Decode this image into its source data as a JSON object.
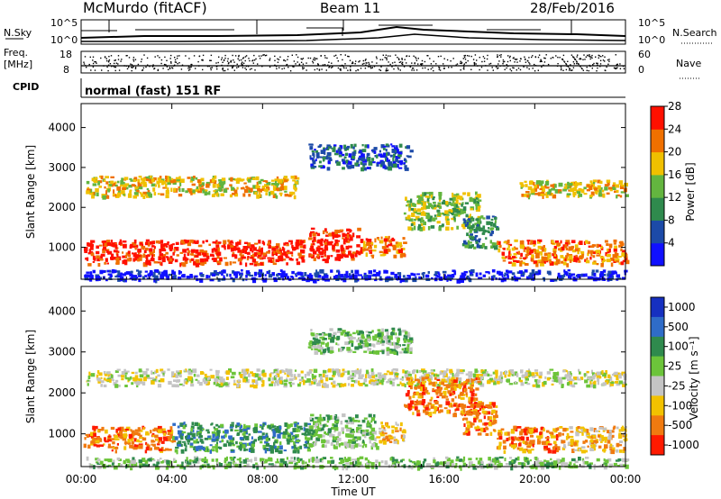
{
  "header": {
    "station": "McMurdo (fitACF)",
    "beam": "Beam 11",
    "date": "28/Feb/2016"
  },
  "summary_panels": {
    "nsky": {
      "label": "N.Sky",
      "ticks": [
        "10^5",
        "10^0"
      ]
    },
    "nsearch": {
      "label": "N.Search",
      "ticks": [
        "10^5",
        "10^0"
      ]
    },
    "freq": {
      "label": "Freq.",
      "unit": "[MHz]",
      "ticks": [
        "18",
        "8"
      ]
    },
    "nave": {
      "label": "Nave",
      "ticks": [
        "60",
        "0"
      ]
    },
    "cpid": {
      "label": "CPID",
      "text": "normal (fast) 151 RF"
    }
  },
  "chart_data": [
    {
      "type": "heatmap",
      "name": "power",
      "ylabel": "Slant Range [km]",
      "yticks": [
        "1000",
        "2000",
        "3000",
        "4000"
      ],
      "ylim": [
        200,
        4600
      ],
      "xlim": [
        0,
        24
      ],
      "colorbar": {
        "label": "Power [dB]",
        "ticks": [
          "4",
          "8",
          "12",
          "16",
          "20",
          "24",
          "28"
        ],
        "colors": [
          "#1010ff",
          "#1c4aa8",
          "#2f8a4d",
          "#63b53f",
          "#f0c000",
          "#f07000",
          "#ff1000"
        ]
      },
      "bands": [
        {
          "x": [
            0.1,
            9.8
          ],
          "r": [
            600,
            1200
          ],
          "level": 6
        },
        {
          "x": [
            10.0,
            12.2
          ],
          "r": [
            700,
            1500
          ],
          "level": 6
        },
        {
          "x": [
            12.2,
            14.2
          ],
          "r": [
            800,
            1300
          ],
          "level": 5
        },
        {
          "x": [
            18.3,
            24.0
          ],
          "r": [
            600,
            1200
          ],
          "level": 5
        },
        {
          "x": [
            0.2,
            9.5
          ],
          "r": [
            2300,
            2800
          ],
          "level": 4
        },
        {
          "x": [
            19.3,
            24.0
          ],
          "r": [
            2300,
            2700
          ],
          "level": 4
        },
        {
          "x": [
            14.2,
            17.5
          ],
          "r": [
            1500,
            2400
          ],
          "level": 3
        },
        {
          "x": [
            16.8,
            18.3
          ],
          "r": [
            1000,
            1800
          ],
          "level": 2
        },
        {
          "x": [
            10.0,
            14.5
          ],
          "r": [
            3000,
            3600
          ],
          "level": 1
        },
        {
          "x": [
            0.1,
            24.0
          ],
          "r": [
            200,
            450
          ],
          "level": 0
        }
      ]
    },
    {
      "type": "heatmap",
      "name": "velocity",
      "xlabel": "Time UT",
      "ylabel": "Slant Range [km]",
      "xticks": [
        "00:00",
        "04:00",
        "08:00",
        "12:00",
        "16:00",
        "20:00",
        "00:00"
      ],
      "yticks": [
        "1000",
        "2000",
        "3000",
        "4000"
      ],
      "ylim": [
        200,
        4600
      ],
      "xlim": [
        0,
        24
      ],
      "colorbar": {
        "label": "Velocity [m s⁻¹]",
        "ticks": [
          "1000",
          "500",
          "100",
          "25",
          "-25",
          "-100",
          "-500",
          "-1000"
        ],
        "colors": [
          "#1630c0",
          "#2f6cc8",
          "#2f8a4d",
          "#6cc43a",
          "#c4c4c4",
          "#f2c200",
          "#f07a10",
          "#ff1a00"
        ]
      },
      "bands": [
        {
          "x": [
            0.1,
            4.0
          ],
          "r": [
            600,
            1200
          ],
          "level": 6
        },
        {
          "x": [
            4.0,
            10.0
          ],
          "r": [
            600,
            1300
          ],
          "level": 2
        },
        {
          "x": [
            10.0,
            13.0
          ],
          "r": [
            700,
            1500
          ],
          "level": 3
        },
        {
          "x": [
            13.0,
            14.2
          ],
          "r": [
            800,
            1300
          ],
          "level": 5
        },
        {
          "x": [
            18.3,
            21.0
          ],
          "r": [
            600,
            1200
          ],
          "level": 6
        },
        {
          "x": [
            21.0,
            24.0
          ],
          "r": [
            600,
            1200
          ],
          "level": 5
        },
        {
          "x": [
            0.2,
            24.0
          ],
          "r": [
            2200,
            2600
          ],
          "level": 4
        },
        {
          "x": [
            14.2,
            17.5
          ],
          "r": [
            1500,
            2400
          ],
          "level": 6
        },
        {
          "x": [
            16.8,
            18.3
          ],
          "r": [
            1000,
            1800
          ],
          "level": 6
        },
        {
          "x": [
            10.0,
            14.5
          ],
          "r": [
            3000,
            3600
          ],
          "level": 3
        },
        {
          "x": [
            0.1,
            24.0
          ],
          "r": [
            200,
            450
          ],
          "level": 3
        }
      ]
    }
  ]
}
